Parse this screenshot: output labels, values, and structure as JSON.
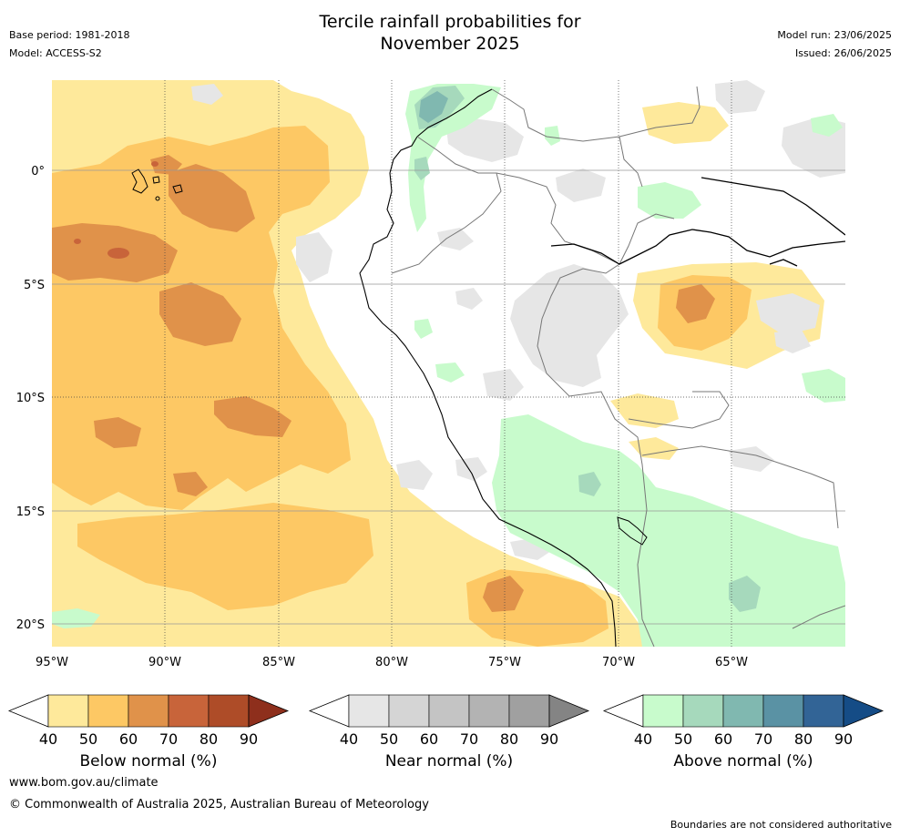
{
  "title": {
    "line1": "Tercile rainfall probabilities for",
    "line2": "November 2025"
  },
  "meta_left": {
    "base_period": "Base period: 1981-2018",
    "model": "Model: ACCESS-S2"
  },
  "meta_right": {
    "model_run": "Model run: 23/06/2025",
    "issued": "Issued: 26/06/2025"
  },
  "map": {
    "lon_labels": [
      "95°W",
      "90°W",
      "85°W",
      "80°W",
      "75°W",
      "70°W",
      "65°W"
    ],
    "lat_labels": [
      "0°",
      "5°S",
      "10°S",
      "15°S",
      "20°S"
    ],
    "lon_range": [
      -95,
      -60
    ],
    "lat_range": [
      -21,
      4
    ]
  },
  "colorbars": [
    {
      "id": "below",
      "label": "Below normal (%)",
      "ticks": [
        "40",
        "50",
        "60",
        "70",
        "80",
        "90"
      ],
      "colors": [
        "#fee99b",
        "#fdc864",
        "#e0924a",
        "#c8643a",
        "#ae4c28",
        "#8e2f1c"
      ]
    },
    {
      "id": "near",
      "label": "Near normal (%)",
      "ticks": [
        "40",
        "50",
        "60",
        "70",
        "80",
        "90"
      ],
      "colors": [
        "#e6e6e6",
        "#d5d5d5",
        "#c4c4c4",
        "#b3b3b3",
        "#a0a0a0",
        "#848484"
      ]
    },
    {
      "id": "above",
      "label": "Above normal (%)",
      "ticks": [
        "40",
        "50",
        "60",
        "70",
        "80",
        "90"
      ],
      "colors": [
        "#c8fbcc",
        "#a6d9bc",
        "#80b8b0",
        "#5a92a4",
        "#326496",
        "#154c86"
      ]
    }
  ],
  "footer": {
    "url": "www.bom.gov.au/climate",
    "copyright": "© Commonwealth of Australia 2025, Australian Bureau of Meteorology",
    "note": "Boundaries are not considered authoritative"
  }
}
